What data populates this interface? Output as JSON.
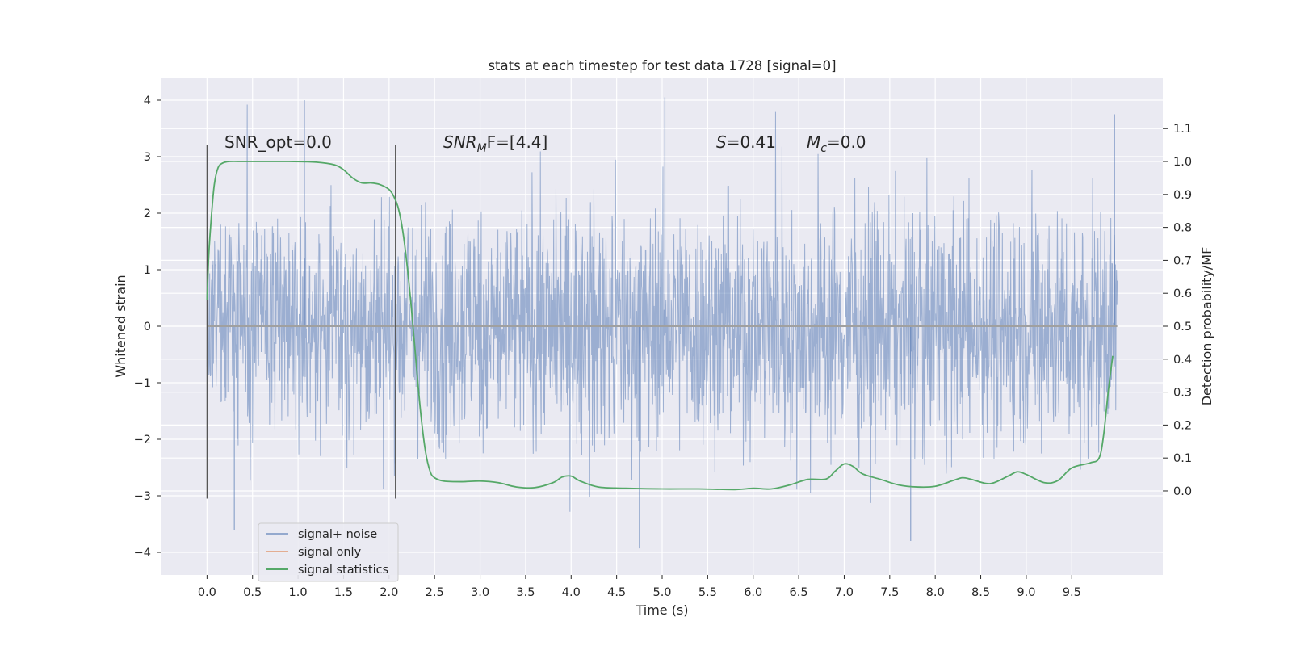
{
  "chart_data": {
    "type": "line",
    "title": "stats at each timestep for test data 1728 [signal=0]",
    "xlabel": "Time (s)",
    "ylabel_left": "Whitened strain",
    "ylabel_right": "Detection probability/MF",
    "xlim": [
      -0.5,
      10.5
    ],
    "ylim_left": [
      -4.4,
      4.4
    ],
    "ylim_right": [
      -0.255,
      1.255
    ],
    "x_ticks": [
      "0.0",
      "0.5",
      "1.0",
      "1.5",
      "2.0",
      "2.5",
      "3.0",
      "3.5",
      "4.0",
      "4.5",
      "5.0",
      "5.5",
      "6.0",
      "6.5",
      "7.0",
      "7.5",
      "8.0",
      "8.5",
      "9.0",
      "9.5"
    ],
    "y_ticks_left": [
      "4",
      "3",
      "2",
      "1",
      "0",
      "−1",
      "−2",
      "−3",
      "−4"
    ],
    "y_ticks_right": [
      "1.1",
      "1.0",
      "0.9",
      "0.8",
      "0.7",
      "0.6",
      "0.5",
      "0.4",
      "0.3",
      "0.2",
      "0.1",
      "0.0"
    ],
    "grid": true,
    "legend_position": "lower-left",
    "annotations": {
      "snr_opt": "SNR_opt=0.0",
      "snr_mf_main": "SNR",
      "snr_mf_sub": "M",
      "snr_mf_rest": "F=[4.4]",
      "s_sym": "S",
      "s_val": "=0.41",
      "mc_sym": "M",
      "mc_sub": "c",
      "mc_val": "=0.0"
    },
    "vlines": [
      {
        "x": 0.0,
        "ymin": -3.05,
        "ymax": 3.2
      },
      {
        "x": 2.07,
        "ymin": -3.05,
        "ymax": 3.2
      }
    ],
    "series": [
      {
        "name": "signal+ noise",
        "axis": "left",
        "color": "#4c72b0",
        "kind": "noise",
        "x_range": [
          0.0,
          10.0
        ],
        "envelope": [
          -2.0,
          2.0
        ],
        "min": -3.93,
        "max": 4.05,
        "notable_peaks": [
          [
            1.07,
            4.0
          ],
          [
            5.03,
            4.05
          ],
          [
            9.97,
            3.75
          ],
          [
            4.75,
            -3.93
          ],
          [
            7.73,
            -3.8
          ],
          [
            0.3,
            -3.6
          ]
        ]
      },
      {
        "name": "signal only",
        "axis": "left",
        "color": "#dd8452",
        "x": [
          0.0,
          10.0
        ],
        "y": [
          0.0,
          0.0
        ]
      },
      {
        "name": "signal statistics",
        "axis": "right",
        "color": "#55a868",
        "x": [
          0.0,
          0.02,
          0.05,
          0.08,
          0.12,
          0.17,
          0.25,
          0.4,
          0.6,
          0.9,
          1.2,
          1.4,
          1.5,
          1.6,
          1.7,
          1.8,
          1.9,
          2.0,
          2.05,
          2.1,
          2.15,
          2.2,
          2.25,
          2.3,
          2.35,
          2.4,
          2.45,
          2.5,
          2.6,
          2.8,
          3.0,
          3.2,
          3.4,
          3.6,
          3.8,
          3.9,
          4.0,
          4.1,
          4.3,
          4.6,
          5.0,
          5.4,
          5.8,
          6.0,
          6.2,
          6.4,
          6.6,
          6.8,
          6.9,
          7.0,
          7.1,
          7.2,
          7.4,
          7.6,
          7.8,
          8.0,
          8.2,
          8.3,
          8.4,
          8.6,
          8.8,
          8.9,
          9.0,
          9.2,
          9.35,
          9.5,
          9.7,
          9.8,
          9.85,
          9.9,
          9.95
        ],
        "y": [
          0.58,
          0.72,
          0.84,
          0.93,
          0.98,
          0.995,
          1.0,
          1.0,
          1.0,
          1.0,
          0.998,
          0.99,
          0.975,
          0.95,
          0.935,
          0.935,
          0.93,
          0.915,
          0.895,
          0.86,
          0.79,
          0.68,
          0.54,
          0.38,
          0.23,
          0.12,
          0.06,
          0.04,
          0.03,
          0.028,
          0.03,
          0.025,
          0.012,
          0.01,
          0.025,
          0.042,
          0.045,
          0.03,
          0.012,
          0.008,
          0.006,
          0.006,
          0.004,
          0.008,
          0.006,
          0.018,
          0.035,
          0.036,
          0.06,
          0.082,
          0.074,
          0.052,
          0.035,
          0.018,
          0.012,
          0.014,
          0.032,
          0.04,
          0.035,
          0.022,
          0.045,
          0.058,
          0.05,
          0.025,
          0.032,
          0.07,
          0.085,
          0.1,
          0.17,
          0.3,
          0.41
        ]
      }
    ]
  }
}
